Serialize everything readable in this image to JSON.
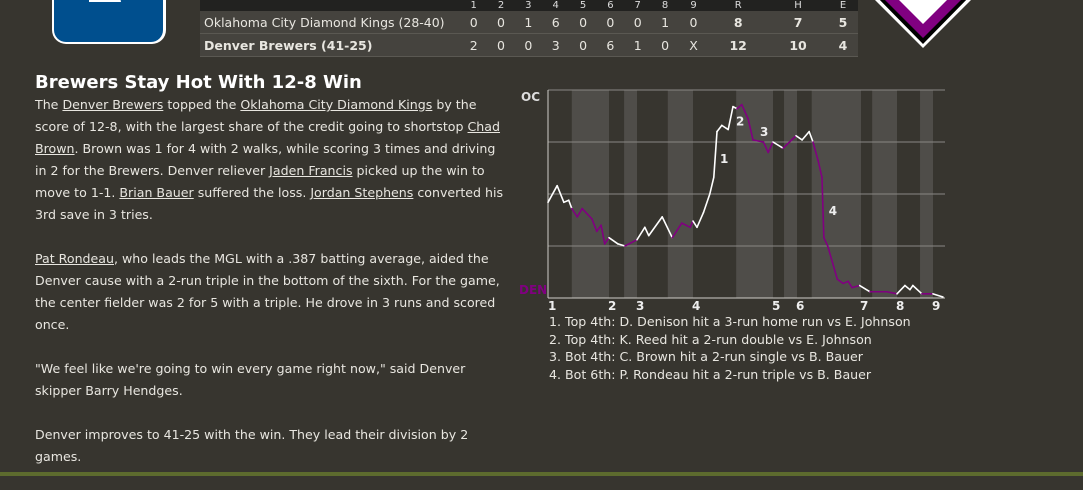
{
  "logos": {
    "home_team": "Oklahoma City Diamond Kings",
    "away_team": "Denver Brewers",
    "home_color": "#004f8e",
    "away_color": "#800080"
  },
  "scoreboard": {
    "headers": [
      "1",
      "2",
      "3",
      "4",
      "5",
      "6",
      "7",
      "8",
      "9",
      "R",
      "H",
      "E"
    ],
    "rows": [
      {
        "team": "Oklahoma City Diamond Kings (28-40)",
        "innings": [
          "0",
          "0",
          "1",
          "6",
          "0",
          "0",
          "0",
          "1",
          "0"
        ],
        "r": "8",
        "h": "7",
        "e": "5"
      },
      {
        "team": "Denver Brewers (41-25)",
        "innings": [
          "2",
          "0",
          "0",
          "3",
          "0",
          "6",
          "1",
          "0",
          "X"
        ],
        "r": "12",
        "h": "10",
        "e": "4"
      }
    ]
  },
  "article": {
    "title": "Brewers Stay Hot With 12-8 Win",
    "paragraphs": [
      [
        {
          "t": "The "
        },
        {
          "t": "Denver Brewers",
          "link": true
        },
        {
          "t": " topped the "
        },
        {
          "t": "Oklahoma City Diamond Kings",
          "link": true
        },
        {
          "t": " by the score of 12-8, with the largest share of the credit going to shortstop "
        },
        {
          "t": "Chad Brown",
          "link": true
        },
        {
          "t": ". Brown was 1 for 4 with 2 walks, while scoring 3 times and driving in 2 for the Brewers. Denver reliever "
        },
        {
          "t": "Jaden Francis",
          "link": true
        },
        {
          "t": " picked up the win to move to 1-1. "
        },
        {
          "t": "Brian Bauer",
          "link": true
        },
        {
          "t": " suffered the loss. "
        },
        {
          "t": "Jordan Stephens",
          "link": true
        },
        {
          "t": " converted his 3rd save in 3 tries."
        }
      ],
      [
        {
          "t": "Pat Rondeau",
          "link": true
        },
        {
          "t": ", who leads the MGL with a .387 batting average, aided the Denver cause with a 2-run triple in the bottom of the sixth. For the game, the center fielder was 2 for 5 with a triple. He drove in 3 runs and scored once."
        }
      ],
      [
        {
          "t": "\"We feel like we're going to win every game right now,\" said Denver skipper Barry Hendges."
        }
      ],
      [
        {
          "t": "Denver improves to 41-25 with the win. They lead their division by 2 games."
        }
      ]
    ]
  },
  "chart_data": {
    "type": "line",
    "top_label": "OC",
    "bottom_label": "DEN",
    "top_color": "#ffffff",
    "bottom_color": "#800080",
    "ylim": [
      0,
      100
    ],
    "xlim": [
      1,
      9.9
    ],
    "x_ticks": [
      "1",
      "2",
      "3",
      "4",
      "5",
      "6",
      "7",
      "8",
      "9"
    ],
    "bottom_half_starts": [
      1.39,
      2.54,
      3.55,
      4.54,
      5.46,
      6.23,
      7.31,
      8.64
    ],
    "grid": true,
    "points": [
      [
        1.0,
        46
      ],
      [
        1.15,
        54
      ],
      [
        1.26,
        46
      ],
      [
        1.34,
        47
      ],
      [
        1.39,
        43
      ],
      [
        1.48,
        39
      ],
      [
        1.56,
        43
      ],
      [
        1.72,
        38
      ],
      [
        1.8,
        32
      ],
      [
        1.87,
        35
      ],
      [
        1.93,
        26
      ],
      [
        2.0,
        29
      ],
      [
        2.32,
        26
      ],
      [
        2.57,
        25
      ],
      [
        3.0,
        28
      ],
      [
        3.14,
        34
      ],
      [
        3.21,
        30
      ],
      [
        3.45,
        39
      ],
      [
        3.63,
        29
      ],
      [
        3.8,
        36
      ],
      [
        3.95,
        34
      ],
      [
        4.0,
        37
      ],
      [
        4.05,
        34
      ],
      [
        4.13,
        41
      ],
      [
        4.21,
        50
      ],
      [
        4.26,
        58
      ],
      [
        4.3,
        80
      ],
      [
        4.36,
        83
      ],
      [
        4.44,
        81
      ],
      [
        4.5,
        92
      ],
      [
        4.55,
        91
      ],
      [
        4.61,
        93
      ],
      [
        4.69,
        86
      ],
      [
        4.75,
        76
      ],
      [
        4.88,
        75
      ],
      [
        4.94,
        70
      ],
      [
        5.0,
        75
      ],
      [
        5.42,
        72
      ],
      [
        5.96,
        78
      ],
      [
        6.08,
        76
      ],
      [
        6.19,
        80
      ],
      [
        6.25,
        75
      ],
      [
        6.33,
        66
      ],
      [
        6.39,
        58
      ],
      [
        6.42,
        29
      ],
      [
        6.48,
        25
      ],
      [
        6.63,
        9
      ],
      [
        6.72,
        7
      ],
      [
        6.8,
        8
      ],
      [
        6.86,
        5
      ],
      [
        6.98,
        6
      ],
      [
        7.25,
        3
      ],
      [
        7.72,
        3
      ],
      [
        8.0,
        2
      ],
      [
        8.22,
        6
      ],
      [
        8.36,
        4
      ],
      [
        8.44,
        6
      ],
      [
        8.69,
        2
      ],
      [
        9.0,
        2
      ],
      [
        9.83,
        0.5
      ]
    ],
    "annotations": [
      {
        "label": "1",
        "x": 4.3,
        "y": 65
      },
      {
        "label": "2",
        "x": 4.5,
        "y": 83
      },
      {
        "label": "3",
        "x": 4.8,
        "y": 78
      },
      {
        "label": "4",
        "x": 6.45,
        "y": 40
      }
    ],
    "key_plays": [
      "1. Top 4th: D. Denison hit a 3-run home run vs E. Johnson",
      "2. Top 4th: K. Reed hit a 2-run double vs E. Johnson",
      "3. Bot 4th: C. Brown hit a 2-run single vs B. Bauer",
      "4. Bot 6th: P. Rondeau hit a 2-run triple vs B. Bauer"
    ]
  }
}
